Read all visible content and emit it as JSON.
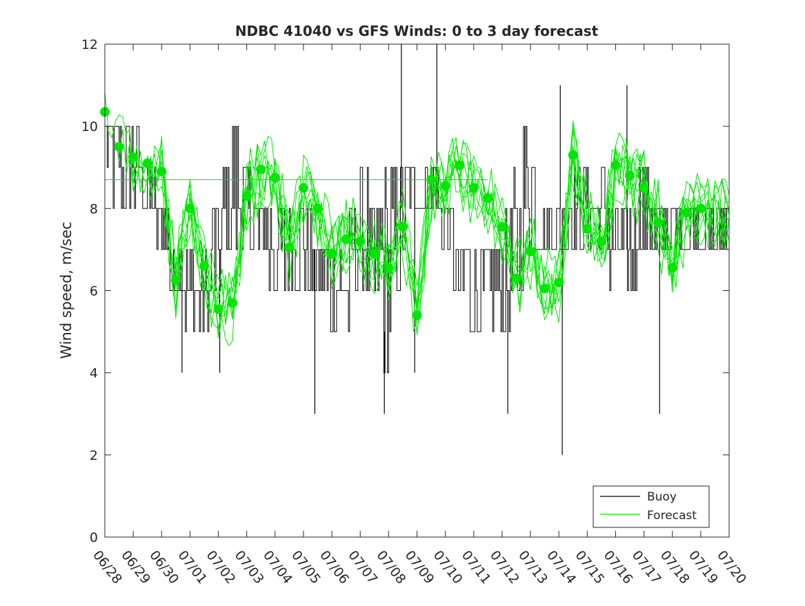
{
  "chart_data": {
    "type": "line",
    "title": "NDBC 41040 vs GFS Winds: 0 to 3 day forecast",
    "xlabel": "",
    "ylabel": "Wind speed, m/sec",
    "xlim": [
      "06/28",
      "07/20"
    ],
    "ylim": [
      0,
      12
    ],
    "yticks": [
      "0",
      "2",
      "4",
      "6",
      "8",
      "10",
      "12"
    ],
    "xticks": [
      "06/28",
      "06/29",
      "06/30",
      "07/01",
      "07/02",
      "07/03",
      "07/04",
      "07/05",
      "07/06",
      "07/07",
      "07/08",
      "07/09",
      "07/10",
      "07/11",
      "07/12",
      "07/13",
      "07/14",
      "07/15",
      "07/16",
      "07/17",
      "07/18",
      "07/19",
      "07/20"
    ],
    "grid": false,
    "legend_position": "bottom-right",
    "colors": {
      "buoy": "#000000",
      "forecast": "#00e600"
    },
    "legend": [
      {
        "name": "Buoy",
        "color": "#000000"
      },
      {
        "name": "Forecast",
        "color": "#00e600"
      }
    ],
    "buoy_envelope": {
      "day": [
        0,
        0.5,
        1,
        1.5,
        2,
        2.5,
        3,
        3.5,
        4,
        4.5,
        5,
        5.5,
        6,
        6.5,
        7,
        7.5,
        8,
        8.5,
        9,
        9.5,
        10,
        10.5,
        11,
        11.5,
        12,
        12.5,
        13,
        13.5,
        14,
        14.5,
        15,
        15.5,
        16,
        16.5,
        17,
        17.5,
        18,
        18.5,
        19,
        19.5,
        20,
        20.5,
        21,
        21.5,
        22
      ],
      "low": [
        9,
        8,
        8,
        8,
        7,
        6,
        5,
        5,
        6,
        7,
        7,
        7,
        6,
        6,
        6,
        6,
        5,
        5,
        6,
        5,
        4,
        7,
        8,
        8,
        7,
        6,
        5,
        5,
        5,
        5,
        7,
        7,
        7,
        7,
        7,
        7,
        6,
        6,
        7,
        7,
        7,
        7,
        7,
        7,
        7
      ],
      "high": [
        10,
        10,
        10,
        9,
        8,
        7,
        7,
        7,
        8,
        10,
        9,
        8,
        8,
        8,
        8,
        7,
        7,
        7,
        9,
        8,
        9,
        9,
        9,
        9,
        8,
        7,
        7,
        7,
        7,
        9,
        10,
        8,
        8,
        9,
        9,
        9,
        8,
        8,
        9,
        8,
        8,
        8,
        8,
        8,
        8
      ]
    },
    "buoy_spikes": [
      {
        "day": 2.72,
        "value": 4
      },
      {
        "day": 4.05,
        "value": 4
      },
      {
        "day": 7.4,
        "value": 3
      },
      {
        "day": 9.85,
        "value": 3
      },
      {
        "day": 10.45,
        "value": 12
      },
      {
        "day": 10.92,
        "value": 4
      },
      {
        "day": 11.7,
        "value": 12
      },
      {
        "day": 14.2,
        "value": 3
      },
      {
        "day": 16.05,
        "value": 11
      },
      {
        "day": 16.12,
        "value": 2
      },
      {
        "day": 18.4,
        "value": 11
      },
      {
        "day": 19.55,
        "value": 3
      }
    ],
    "forecast_markers": {
      "day": [
        0,
        0.5,
        1,
        1.5,
        2,
        2.5,
        3,
        3.5,
        4,
        4.5,
        5,
        5.5,
        6,
        6.5,
        7,
        7.5,
        8,
        8.5,
        9,
        9.5,
        10,
        10.5,
        11,
        11.5,
        12,
        12.5,
        13,
        13.5,
        14,
        14.5,
        15,
        15.5,
        16,
        16.5,
        17,
        17.5,
        18,
        18.5,
        19,
        19.5,
        20,
        20.5,
        21
      ],
      "value": [
        10.35,
        9.5,
        9.25,
        9.1,
        8.9,
        6.25,
        8.0,
        6.6,
        5.55,
        5.7,
        8.3,
        8.95,
        8.75,
        7.05,
        8.5,
        8.0,
        6.9,
        7.25,
        7.2,
        6.9,
        6.55,
        7.55,
        5.4,
        8.7,
        8.55,
        9.05,
        8.5,
        8.25,
        7.55,
        6.3,
        6.95,
        6.05,
        6.2,
        9.3,
        7.5,
        7.2,
        9.05,
        8.8,
        8.5,
        7.65,
        6.55,
        7.9,
        8.0
      ]
    },
    "forecast_runs": 8,
    "forecast_reference_line": {
      "from_day": 0,
      "to_day": 13.5,
      "value": 8.7
    }
  }
}
